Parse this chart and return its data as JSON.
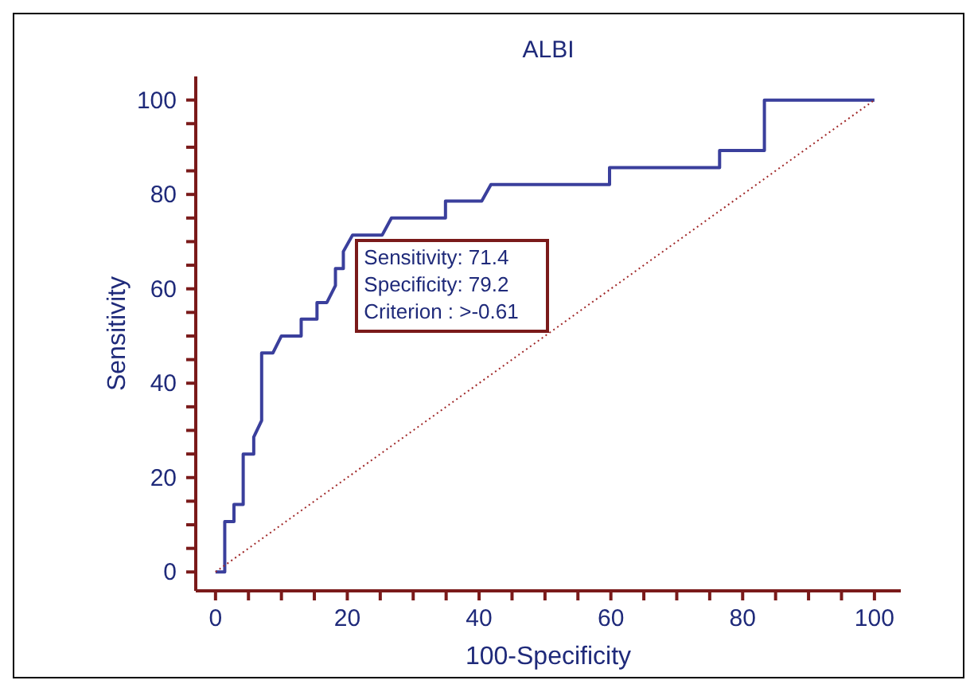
{
  "chart_data": {
    "type": "line",
    "title": "ALBI",
    "xlabel": "100-Specificity",
    "ylabel": "Sensitivity",
    "series": [
      {
        "type": "step",
        "color": "#3a3f9c",
        "x": [
          0,
          1.4,
          1.4,
          2.8,
          2.8,
          4.2,
          4.2,
          5.8,
          5.8,
          7,
          7,
          8.7,
          10,
          13,
          13,
          15.4,
          15.4,
          16.9,
          18.2,
          18.2,
          19.4,
          19.4,
          20.8,
          25.3,
          26.7,
          34.9,
          34.9,
          40.4,
          41.8,
          59.8,
          59.8,
          76.5,
          76.5,
          83.3,
          83.3,
          100
        ],
        "values": [
          0,
          0,
          10.7,
          10.7,
          14.3,
          14.3,
          25,
          25,
          28.6,
          32.1,
          46.4,
          46.4,
          50,
          50,
          53.6,
          53.6,
          57.1,
          57.1,
          60.7,
          64.3,
          64.3,
          67.9,
          71.4,
          71.4,
          75,
          75,
          78.6,
          78.6,
          82.1,
          82.1,
          85.7,
          85.7,
          89.3,
          89.3,
          100,
          100
        ]
      },
      {
        "type": "line",
        "color": "#a02828",
        "line_style": "dotted",
        "x": [
          0,
          100
        ],
        "values": [
          0,
          100
        ]
      }
    ],
    "annotations": [
      "Sensitivity: 71.4",
      "Specificity: 79.2",
      "Criterion : >-0.61"
    ],
    "xlim": [
      -3,
      104
    ],
    "ylim": [
      -4,
      105
    ],
    "xticks": [
      0,
      {
        "value": 5,
        "label": null
      },
      {
        "value": 10,
        "label": null
      },
      {
        "value": 15,
        "label": null
      },
      20,
      {
        "value": 25,
        "label": null
      },
      {
        "value": 30,
        "label": null
      },
      {
        "value": 35,
        "label": null
      },
      40,
      {
        "value": 45,
        "label": null
      },
      {
        "value": 50,
        "label": null
      },
      {
        "value": 55,
        "label": null
      },
      60,
      {
        "value": 65,
        "label": null
      },
      {
        "value": 70,
        "label": null
      },
      {
        "value": 75,
        "label": null
      },
      80,
      {
        "value": 85,
        "label": null
      },
      {
        "value": 90,
        "label": null
      },
      {
        "value": 95,
        "label": null
      },
      100
    ],
    "yticks": [
      0,
      {
        "value": 5,
        "label": null
      },
      {
        "value": 10,
        "label": null
      },
      {
        "value": 15,
        "label": null
      },
      20,
      {
        "value": 25,
        "label": null
      },
      {
        "value": 30,
        "label": null
      },
      {
        "value": 35,
        "label": null
      },
      40,
      {
        "value": 45,
        "label": null
      },
      {
        "value": 50,
        "label": null
      },
      {
        "value": 55,
        "label": null
      },
      60,
      {
        "value": 65,
        "label": null
      },
      {
        "value": 70,
        "label": null
      },
      {
        "value": 75,
        "label": null
      },
      80,
      {
        "value": 85,
        "label": null
      },
      {
        "value": 90,
        "label": null
      },
      {
        "value": 95,
        "label": null
      },
      100
    ],
    "grid": false
  }
}
